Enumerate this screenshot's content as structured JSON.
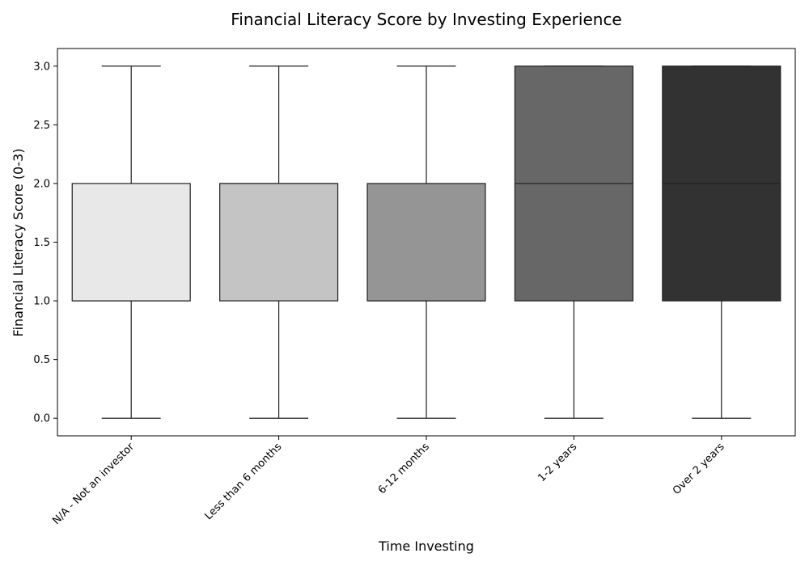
{
  "chart_data": {
    "type": "box",
    "title": "Financial Literacy Score by Investing Experience",
    "xlabel": "Time Investing",
    "ylabel": "Financial Literacy Score (0-3)",
    "ylim": [
      -0.15,
      3.15
    ],
    "yticks": [
      "0.0",
      "0.5",
      "1.0",
      "1.5",
      "2.0",
      "2.5",
      "3.0"
    ],
    "grid": false,
    "categories": [
      "N/A - Not an investor",
      "Less than 6 months",
      "6-12 months",
      "1-2 years",
      "Over 2 years"
    ],
    "boxes": [
      {
        "category": "N/A - Not an investor",
        "min": 0,
        "q1": 1,
        "median": 1,
        "q3": 2,
        "max": 3,
        "color": "#e8e8e8"
      },
      {
        "category": "Less than 6 months",
        "min": 0,
        "q1": 1,
        "median": 2,
        "q3": 2,
        "max": 3,
        "color": "#c4c4c4"
      },
      {
        "category": "6-12 months",
        "min": 0,
        "q1": 1,
        "median": 1,
        "q3": 2,
        "max": 3,
        "color": "#959595"
      },
      {
        "category": "1-2 years",
        "min": 0,
        "q1": 1,
        "median": 2,
        "q3": 3,
        "max": 3,
        "color": "#676767"
      },
      {
        "category": "Over 2 years",
        "min": 0,
        "q1": 1,
        "median": 2,
        "q3": 3,
        "max": 3,
        "color": "#323232"
      }
    ]
  }
}
